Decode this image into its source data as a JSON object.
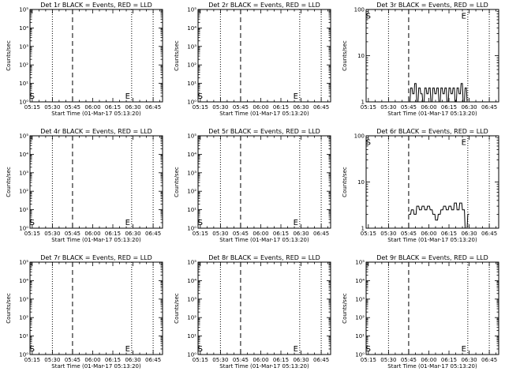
{
  "figure": {
    "x_ticks": [
      "05:15",
      "05:30",
      "05:45",
      "06:00",
      "06:15",
      "06:30",
      "06:45"
    ],
    "x_tick_minutes": [
      15,
      30,
      45,
      60,
      75,
      90,
      105
    ],
    "x_range_minutes": [
      13.33,
      112
    ],
    "xlabel": "Start Time (01-Mar-17 05:13:20)",
    "ylabel": "Counts/sec",
    "style": {
      "line_color": "#000000",
      "background": "#ffffff"
    }
  },
  "chart_data": [
    {
      "type": "line",
      "title": "Det 1r BLACK = Events, RED = LLD",
      "ylog": true,
      "ylim": [
        1,
        100000
      ],
      "ytick_labels": [
        "10⁰",
        "10¹",
        "10²",
        "10³",
        "10⁴",
        "10⁵"
      ],
      "ytick_values": [
        1,
        10,
        100,
        1000,
        10000,
        100000
      ],
      "vlines_dotted": [
        30,
        89,
        105
      ],
      "vlines_dashed": [
        45
      ],
      "markers": [
        {
          "label": "S",
          "x": 15,
          "y": 2.2
        },
        {
          "label": "E",
          "x": 86,
          "y": 2.2
        }
      ],
      "series": []
    },
    {
      "type": "line",
      "title": "Det 2r BLACK = Events, RED = LLD",
      "ylog": true,
      "ylim": [
        1,
        100000
      ],
      "ytick_labels": [
        "10⁰",
        "10¹",
        "10²",
        "10³",
        "10⁴",
        "10⁵"
      ],
      "ytick_values": [
        1,
        10,
        100,
        1000,
        10000,
        100000
      ],
      "vlines_dotted": [
        30,
        89,
        105
      ],
      "vlines_dashed": [
        45
      ],
      "markers": [
        {
          "label": "S",
          "x": 15,
          "y": 2.2
        },
        {
          "label": "E",
          "x": 86,
          "y": 2.2
        }
      ],
      "series": []
    },
    {
      "type": "line",
      "title": "Det 3r BLACK = Events, RED = LLD",
      "ylog": true,
      "ylim": [
        1,
        100
      ],
      "ytick_labels": [
        "1",
        "10",
        "100"
      ],
      "ytick_values": [
        1,
        10,
        100
      ],
      "vlines_dotted": [
        30,
        89,
        105
      ],
      "vlines_dashed": [
        45
      ],
      "markers": [
        {
          "label": "S",
          "x": 15,
          "y": 75
        },
        {
          "label": "E",
          "x": 86,
          "y": 75
        }
      ],
      "series": [
        {
          "values_x": [
            45.0,
            46.0,
            46.5,
            47.5,
            48.0,
            49.0,
            49.5,
            50.5,
            51.0,
            52.0,
            52.5,
            53.5,
            54.0,
            55.0,
            55.5,
            56.5,
            57.0,
            58.0,
            58.5,
            59.5,
            60.0,
            61.0,
            61.5,
            62.5,
            63.0,
            64.0,
            64.5,
            65.5,
            66.0,
            67.0,
            67.5,
            68.5,
            69.0,
            70.0,
            70.5,
            71.5,
            72.0,
            73.0,
            73.5,
            74.5,
            75.0,
            76.0,
            76.5,
            77.5,
            78.0,
            79.0,
            79.5,
            80.5,
            81.0,
            82.0,
            82.5,
            83.5,
            84.0,
            85.0,
            85.5,
            86.5,
            87.0,
            88.0,
            88.5,
            89.0
          ],
          "values_y": [
            1.0,
            1.0,
            2.0,
            2.0,
            1.5,
            1.5,
            2.5,
            2.5,
            1.0,
            1.0,
            2.0,
            2.0,
            1.5,
            1.5,
            1.0,
            1.0,
            2.0,
            2.0,
            1.5,
            1.5,
            2.0,
            2.0,
            1.0,
            1.0,
            2.0,
            2.0,
            1.5,
            1.5,
            2.0,
            2.0,
            1.0,
            1.0,
            2.0,
            2.0,
            1.5,
            1.5,
            2.0,
            2.0,
            1.0,
            1.0,
            2.0,
            2.0,
            1.5,
            1.5,
            2.0,
            2.0,
            1.0,
            1.0,
            2.0,
            2.0,
            1.5,
            1.5,
            2.5,
            2.5,
            1.0,
            1.0,
            2.0,
            2.0,
            1.0,
            1.0
          ]
        }
      ]
    },
    {
      "type": "line",
      "title": "Det 4r BLACK = Events, RED = LLD",
      "ylog": true,
      "ylim": [
        1,
        100000
      ],
      "ytick_labels": [
        "10⁰",
        "10¹",
        "10²",
        "10³",
        "10⁴",
        "10⁵"
      ],
      "ytick_values": [
        1,
        10,
        100,
        1000,
        10000,
        100000
      ],
      "vlines_dotted": [
        30,
        89,
        105
      ],
      "vlines_dashed": [
        45
      ],
      "markers": [
        {
          "label": "S",
          "x": 15,
          "y": 2.2
        },
        {
          "label": "E",
          "x": 86,
          "y": 2.2
        }
      ],
      "series": []
    },
    {
      "type": "line",
      "title": "Det 5r BLACK = Events, RED = LLD",
      "ylog": true,
      "ylim": [
        1,
        100000
      ],
      "ytick_labels": [
        "10⁰",
        "10¹",
        "10²",
        "10³",
        "10⁴",
        "10⁵"
      ],
      "ytick_values": [
        1,
        10,
        100,
        1000,
        10000,
        100000
      ],
      "vlines_dotted": [
        30,
        89,
        105
      ],
      "vlines_dashed": [
        45
      ],
      "markers": [
        {
          "label": "S",
          "x": 15,
          "y": 2.2
        },
        {
          "label": "E",
          "x": 86,
          "y": 2.2
        }
      ],
      "series": []
    },
    {
      "type": "line",
      "title": "Det 6r BLACK = Events, RED = LLD",
      "ylog": true,
      "ylim": [
        1,
        100
      ],
      "ytick_labels": [
        "1",
        "10",
        "100"
      ],
      "ytick_values": [
        1,
        10,
        100
      ],
      "vlines_dotted": [
        30,
        89,
        105
      ],
      "vlines_dashed": [
        45
      ],
      "markers": [
        {
          "label": "S",
          "x": 15,
          "y": 75
        },
        {
          "label": "E",
          "x": 86,
          "y": 75
        }
      ],
      "series": [
        {
          "values_x": [
            45.0,
            46.5,
            47.0,
            48.5,
            49.0,
            50.5,
            51.0,
            52.5,
            53.0,
            54.5,
            55.0,
            56.5,
            57.0,
            58.5,
            59.0,
            60.5,
            61.0,
            62.5,
            63.0,
            64.5,
            65.0,
            66.5,
            67.0,
            68.5,
            69.0,
            70.5,
            71.0,
            72.5,
            73.0,
            74.5,
            75.0,
            76.5,
            77.0,
            78.5,
            79.0,
            80.5,
            81.0,
            82.5,
            83.0,
            84.5,
            85.0,
            86.5,
            87.0,
            88.5,
            89.0,
            90.0
          ],
          "values_y": [
            2.0,
            2.0,
            2.5,
            2.5,
            2.0,
            2.0,
            3.0,
            3.0,
            2.5,
            2.5,
            3.0,
            3.0,
            2.5,
            2.5,
            3.0,
            3.0,
            2.5,
            2.5,
            2.0,
            2.0,
            1.5,
            1.5,
            2.0,
            2.0,
            2.5,
            2.5,
            3.0,
            3.0,
            2.5,
            2.5,
            3.0,
            3.0,
            2.5,
            2.5,
            3.5,
            3.5,
            2.5,
            2.5,
            3.5,
            3.5,
            2.5,
            2.5,
            1.0,
            1.0,
            2.0,
            2.0
          ]
        }
      ]
    },
    {
      "type": "line",
      "title": "Det 7r BLACK = Events, RED = LLD",
      "ylog": true,
      "ylim": [
        1,
        100000
      ],
      "ytick_labels": [
        "10⁰",
        "10¹",
        "10²",
        "10³",
        "10⁴",
        "10⁵"
      ],
      "ytick_values": [
        1,
        10,
        100,
        1000,
        10000,
        100000
      ],
      "vlines_dotted": [
        30,
        89,
        105
      ],
      "vlines_dashed": [
        45
      ],
      "markers": [
        {
          "label": "S",
          "x": 15,
          "y": 2.2
        },
        {
          "label": "E",
          "x": 86,
          "y": 2.2
        }
      ],
      "series": []
    },
    {
      "type": "line",
      "title": "Det 8r BLACK = Events, RED = LLD",
      "ylog": true,
      "ylim": [
        1,
        100000
      ],
      "ytick_labels": [
        "10⁰",
        "10¹",
        "10²",
        "10³",
        "10⁴",
        "10⁵"
      ],
      "ytick_values": [
        1,
        10,
        100,
        1000,
        10000,
        100000
      ],
      "vlines_dotted": [
        30,
        89,
        105
      ],
      "vlines_dashed": [
        45
      ],
      "markers": [
        {
          "label": "S",
          "x": 15,
          "y": 2.2
        },
        {
          "label": "E",
          "x": 86,
          "y": 2.2
        }
      ],
      "series": []
    },
    {
      "type": "line",
      "title": "Det 9r BLACK = Events, RED = LLD",
      "ylog": true,
      "ylim": [
        1,
        100000
      ],
      "ytick_labels": [
        "10⁰",
        "10¹",
        "10²",
        "10³",
        "10⁴",
        "10⁵"
      ],
      "ytick_values": [
        1,
        10,
        100,
        1000,
        10000,
        100000
      ],
      "vlines_dotted": [
        30,
        89,
        105
      ],
      "vlines_dashed": [
        45
      ],
      "markers": [
        {
          "label": "S",
          "x": 15,
          "y": 2.2
        },
        {
          "label": "E",
          "x": 86,
          "y": 2.2
        }
      ],
      "series": []
    }
  ]
}
